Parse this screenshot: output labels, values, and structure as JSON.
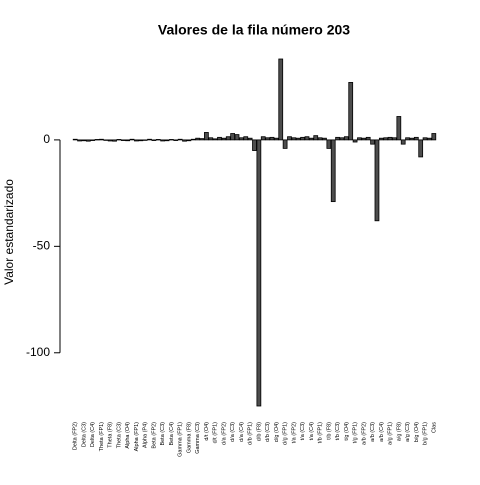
{
  "chart_data": {
    "type": "bar",
    "title": "Valores de la fila número  203",
    "y_label": "Valor estandarizado",
    "categories": [
      "Delta (FP2)",
      null,
      "Delta (C3)",
      null,
      "Delta (C4)",
      null,
      "Theta (FP1)",
      null,
      "Theta (F8)",
      null,
      "Theta (C3)",
      null,
      "Alpha (O4)",
      null,
      "Alpha (FP1)",
      null,
      "Alpha (P4)",
      null,
      "Beta (FP2)",
      null,
      "Beta (C3)",
      null,
      "Beta (C4)",
      null,
      "Gamma (FP1)",
      null,
      "Gamma (F8)",
      null,
      "Gamma (C3)",
      null,
      "d/t (O4)",
      null,
      "d/t (FP1)",
      null,
      "d/a (FP2)",
      null,
      "d/a (C3)",
      null,
      "d/a (C4)",
      null,
      "d/b (FP1)",
      null,
      "d/b (F8)",
      null,
      "d/b (C3)",
      null,
      "d/g (O4)",
      null,
      "d/g (FP1)",
      null,
      "t/a (FP2)",
      null,
      "t/a (C3)",
      null,
      "t/a (C4)",
      null,
      "t/b (FP1)",
      null,
      "t/b (F8)",
      null,
      "t/b (C3)",
      null,
      "t/g (O4)",
      null,
      "t/g (FP1)",
      null,
      "a/b (FP2)",
      null,
      "a/b (C3)",
      null,
      "a/b (C4)",
      null,
      "a/g (FP1)",
      null,
      "a/g (F8)",
      null,
      "a/g (C3)",
      null,
      "b/g (O4)",
      null,
      "b/g (FP1)",
      null,
      "Clas"
    ],
    "values": [
      0.3,
      -0.5,
      -0.4,
      -0.6,
      -0.3,
      0.2,
      0.3,
      -0.2,
      -0.5,
      -0.6,
      0.2,
      -0.3,
      -0.4,
      0.3,
      -0.5,
      -0.4,
      -0.2,
      0.3,
      -0.3,
      0.2,
      -0.5,
      -0.4,
      0.2,
      -0.3,
      0.3,
      -0.6,
      -0.4,
      0.3,
      0.8,
      0.6,
      3.5,
      1,
      0.5,
      1.2,
      0.8,
      1.5,
      3,
      2.5,
      1,
      1.5,
      0.8,
      -5,
      -125,
      1.5,
      1,
      1.2,
      0.8,
      38,
      -4,
      1.5,
      1,
      0.8,
      1.2,
      1.5,
      0.8,
      2,
      1,
      0.8,
      -4,
      -29,
      1.2,
      1,
      1.5,
      27,
      -1,
      1,
      0.8,
      1.2,
      -2,
      -38,
      0.8,
      1,
      1.2,
      1,
      11,
      -2,
      1,
      0.8,
      1.2,
      -8,
      1,
      0.8,
      3
    ],
    "color": "#4d4d4d",
    "ylim": [
      -125,
      38
    ],
    "yticks": [
      -100,
      -50,
      0
    ]
  }
}
